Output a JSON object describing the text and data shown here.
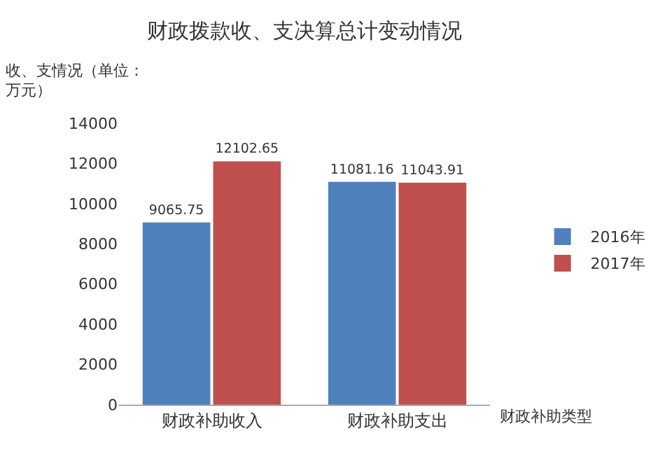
{
  "chart_data": {
    "type": "bar",
    "title": "财政拨款收、支决算总计变动情况",
    "ylabel": "收、支情况（单位：万元）",
    "xlabel": "财政补助类型",
    "categories": [
      "财政补助收入",
      "财政补助支出"
    ],
    "series": [
      {
        "name": "2016年",
        "color": "#4f81bd",
        "values": [
          9065.75,
          11081.16
        ]
      },
      {
        "name": "2017年",
        "color": "#c0504d",
        "values": [
          12102.65,
          11043.91
        ]
      }
    ],
    "ylim": [
      0,
      14000
    ],
    "yticks": [
      0,
      2000,
      4000,
      6000,
      8000,
      10000,
      12000,
      14000
    ],
    "data_labels": true,
    "legend": "right"
  }
}
